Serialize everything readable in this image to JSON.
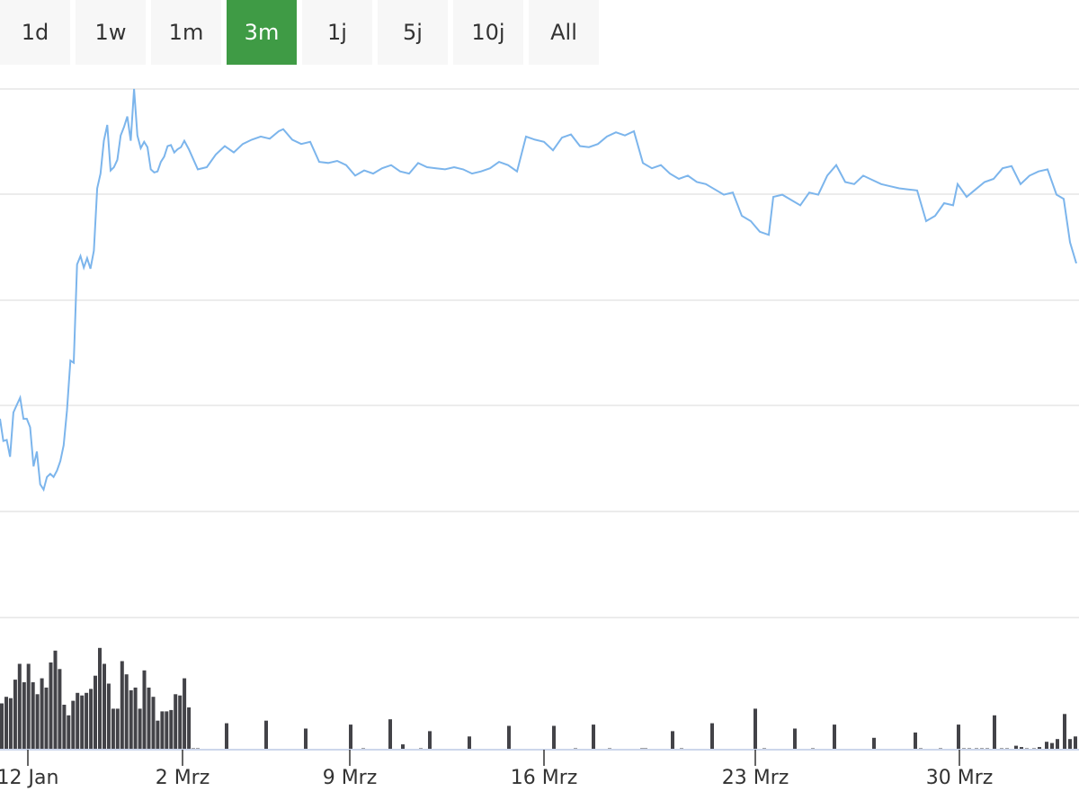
{
  "range_selector": {
    "buttons": [
      {
        "label": "1d",
        "active": false
      },
      {
        "label": "1w",
        "active": false
      },
      {
        "label": "1m",
        "active": false
      },
      {
        "label": "3m",
        "active": true
      },
      {
        "label": "1j",
        "active": false
      },
      {
        "label": "5j",
        "active": false
      },
      {
        "label": "10j",
        "active": false
      },
      {
        "label": "All",
        "active": false
      }
    ]
  },
  "colors": {
    "line": "#7cb5ec",
    "volume": "#434348",
    "grid": "#e6e6e6",
    "active_button": "#3f9b45",
    "button_bg": "#f7f7f7"
  },
  "chart_data": {
    "type": "line",
    "title": "",
    "ylabel": "",
    "grid": true,
    "y_tick_labels_shown": false,
    "legend": "none",
    "x_ticks": [
      {
        "label": "12 Jan",
        "day": 0
      },
      {
        "label": "2 Mrz",
        "day": 49
      },
      {
        "label": "9 Mrz",
        "day": 56
      },
      {
        "label": "16 Mrz",
        "day": 63
      },
      {
        "label": "23 Mrz",
        "day": 70
      },
      {
        "label": "30 Mrz",
        "day": 77
      }
    ],
    "price_series": {
      "name": "",
      "unit_note": "relative scale, 0 = bottom gridline, 5 = top gridline",
      "points": [
        [
          -1.0,
          1.88
        ],
        [
          -0.8,
          1.67
        ],
        [
          -0.6,
          1.68
        ],
        [
          -0.4,
          1.52
        ],
        [
          -0.2,
          1.94
        ],
        [
          0.0,
          2.01
        ],
        [
          0.2,
          2.08
        ],
        [
          0.4,
          1.88
        ],
        [
          0.6,
          1.88
        ],
        [
          0.8,
          1.8
        ],
        [
          1.0,
          1.43
        ],
        [
          1.2,
          1.57
        ],
        [
          1.4,
          1.26
        ],
        [
          1.6,
          1.21
        ],
        [
          1.8,
          1.33
        ],
        [
          2.0,
          1.36
        ],
        [
          2.2,
          1.33
        ],
        [
          2.4,
          1.39
        ],
        [
          2.6,
          1.48
        ],
        [
          2.8,
          1.63
        ],
        [
          3.0,
          1.96
        ],
        [
          3.2,
          2.43
        ],
        [
          3.4,
          2.41
        ],
        [
          3.6,
          3.34
        ],
        [
          3.8,
          3.42
        ],
        [
          4.0,
          3.31
        ],
        [
          4.2,
          3.4
        ],
        [
          4.4,
          3.3
        ],
        [
          4.6,
          3.47
        ],
        [
          4.8,
          4.06
        ],
        [
          5.0,
          4.2
        ],
        [
          5.2,
          4.51
        ],
        [
          5.4,
          4.66
        ],
        [
          5.6,
          4.23
        ],
        [
          5.8,
          4.26
        ],
        [
          6.0,
          4.33
        ],
        [
          6.2,
          4.56
        ],
        [
          6.4,
          4.64
        ],
        [
          6.6,
          4.74
        ],
        [
          6.8,
          4.51
        ],
        [
          7.0,
          5.0
        ],
        [
          7.2,
          4.56
        ],
        [
          7.4,
          4.44
        ],
        [
          7.6,
          4.5
        ],
        [
          7.8,
          4.45
        ],
        [
          8.0,
          4.24
        ],
        [
          8.2,
          4.21
        ],
        [
          8.4,
          4.22
        ],
        [
          8.6,
          4.31
        ],
        [
          8.8,
          4.36
        ],
        [
          9.0,
          4.46
        ],
        [
          9.2,
          4.47
        ],
        [
          9.4,
          4.4
        ],
        [
          9.6,
          4.43
        ],
        [
          9.8,
          4.45
        ],
        [
          10.0,
          4.51
        ]
      ]
    },
    "volume_series": {
      "name": "",
      "unit_note": "relative scale, 0-1",
      "points": [
        [
          -1.0,
          0.35
        ],
        [
          -0.8,
          0.4
        ],
        [
          -0.6,
          0.39
        ],
        [
          -0.4,
          0.53
        ],
        [
          -0.2,
          0.65
        ],
        [
          0.0,
          0.51
        ],
        [
          0.2,
          0.65
        ],
        [
          0.4,
          0.51
        ],
        [
          0.6,
          0.42
        ],
        [
          0.8,
          0.54
        ],
        [
          1.0,
          0.47
        ],
        [
          1.2,
          0.66
        ],
        [
          1.4,
          0.75
        ],
        [
          1.6,
          0.61
        ],
        [
          1.8,
          0.34
        ],
        [
          2.0,
          0.26
        ],
        [
          2.2,
          0.37
        ],
        [
          2.4,
          0.43
        ],
        [
          2.6,
          0.41
        ],
        [
          2.8,
          0.43
        ],
        [
          3.0,
          0.46
        ],
        [
          3.2,
          0.56
        ],
        [
          3.4,
          0.77
        ],
        [
          3.6,
          0.65
        ],
        [
          3.8,
          0.5
        ],
        [
          4.0,
          0.31
        ],
        [
          4.2,
          0.31
        ],
        [
          4.4,
          0.67
        ],
        [
          4.6,
          0.57
        ],
        [
          4.8,
          0.45
        ],
        [
          5.0,
          0.47
        ],
        [
          5.2,
          0.31
        ],
        [
          5.4,
          0.6
        ],
        [
          5.6,
          0.47
        ],
        [
          5.8,
          0.4
        ],
        [
          6.0,
          0.22
        ],
        [
          6.2,
          0.29
        ],
        [
          6.4,
          0.29
        ],
        [
          6.6,
          0.3
        ],
        [
          6.8,
          0.42
        ],
        [
          7.0,
          0.41
        ],
        [
          7.2,
          0.54
        ],
        [
          7.4,
          0.32
        ],
        [
          7.6,
          0.01
        ],
        [
          7.8,
          0.01
        ]
      ]
    }
  }
}
